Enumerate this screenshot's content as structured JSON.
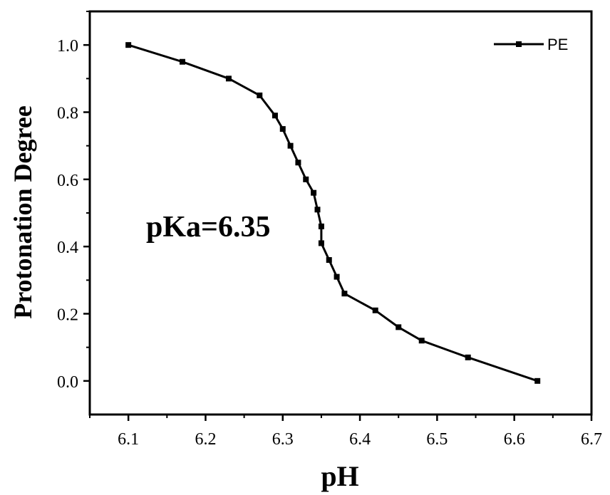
{
  "chart_data": {
    "type": "line",
    "xlabel": "pH",
    "ylabel": "Protonation Degree",
    "xlim": [
      6.05,
      6.7
    ],
    "ylim": [
      -0.1,
      1.1
    ],
    "x_ticks": [
      "6.1",
      "6.2",
      "6.3",
      "6.4",
      "6.5",
      "6.6",
      "6.7"
    ],
    "y_ticks": [
      "0.0",
      "0.2",
      "0.4",
      "0.6",
      "0.8",
      "1.0"
    ],
    "legend": {
      "position": "top-right",
      "entries": [
        "PE"
      ]
    },
    "annotation": "pKa=6.35",
    "grid": false,
    "series": [
      {
        "name": "PE",
        "color": "#000000",
        "marker": "square",
        "x": [
          6.1,
          6.17,
          6.23,
          6.27,
          6.29,
          6.3,
          6.31,
          6.32,
          6.33,
          6.34,
          6.345,
          6.35,
          6.35,
          6.36,
          6.37,
          6.38,
          6.42,
          6.45,
          6.48,
          6.54,
          6.63
        ],
        "y": [
          1.0,
          0.95,
          0.9,
          0.85,
          0.79,
          0.75,
          0.7,
          0.65,
          0.6,
          0.56,
          0.51,
          0.46,
          0.41,
          0.36,
          0.31,
          0.26,
          0.21,
          0.16,
          0.12,
          0.07,
          0.0
        ]
      }
    ]
  }
}
